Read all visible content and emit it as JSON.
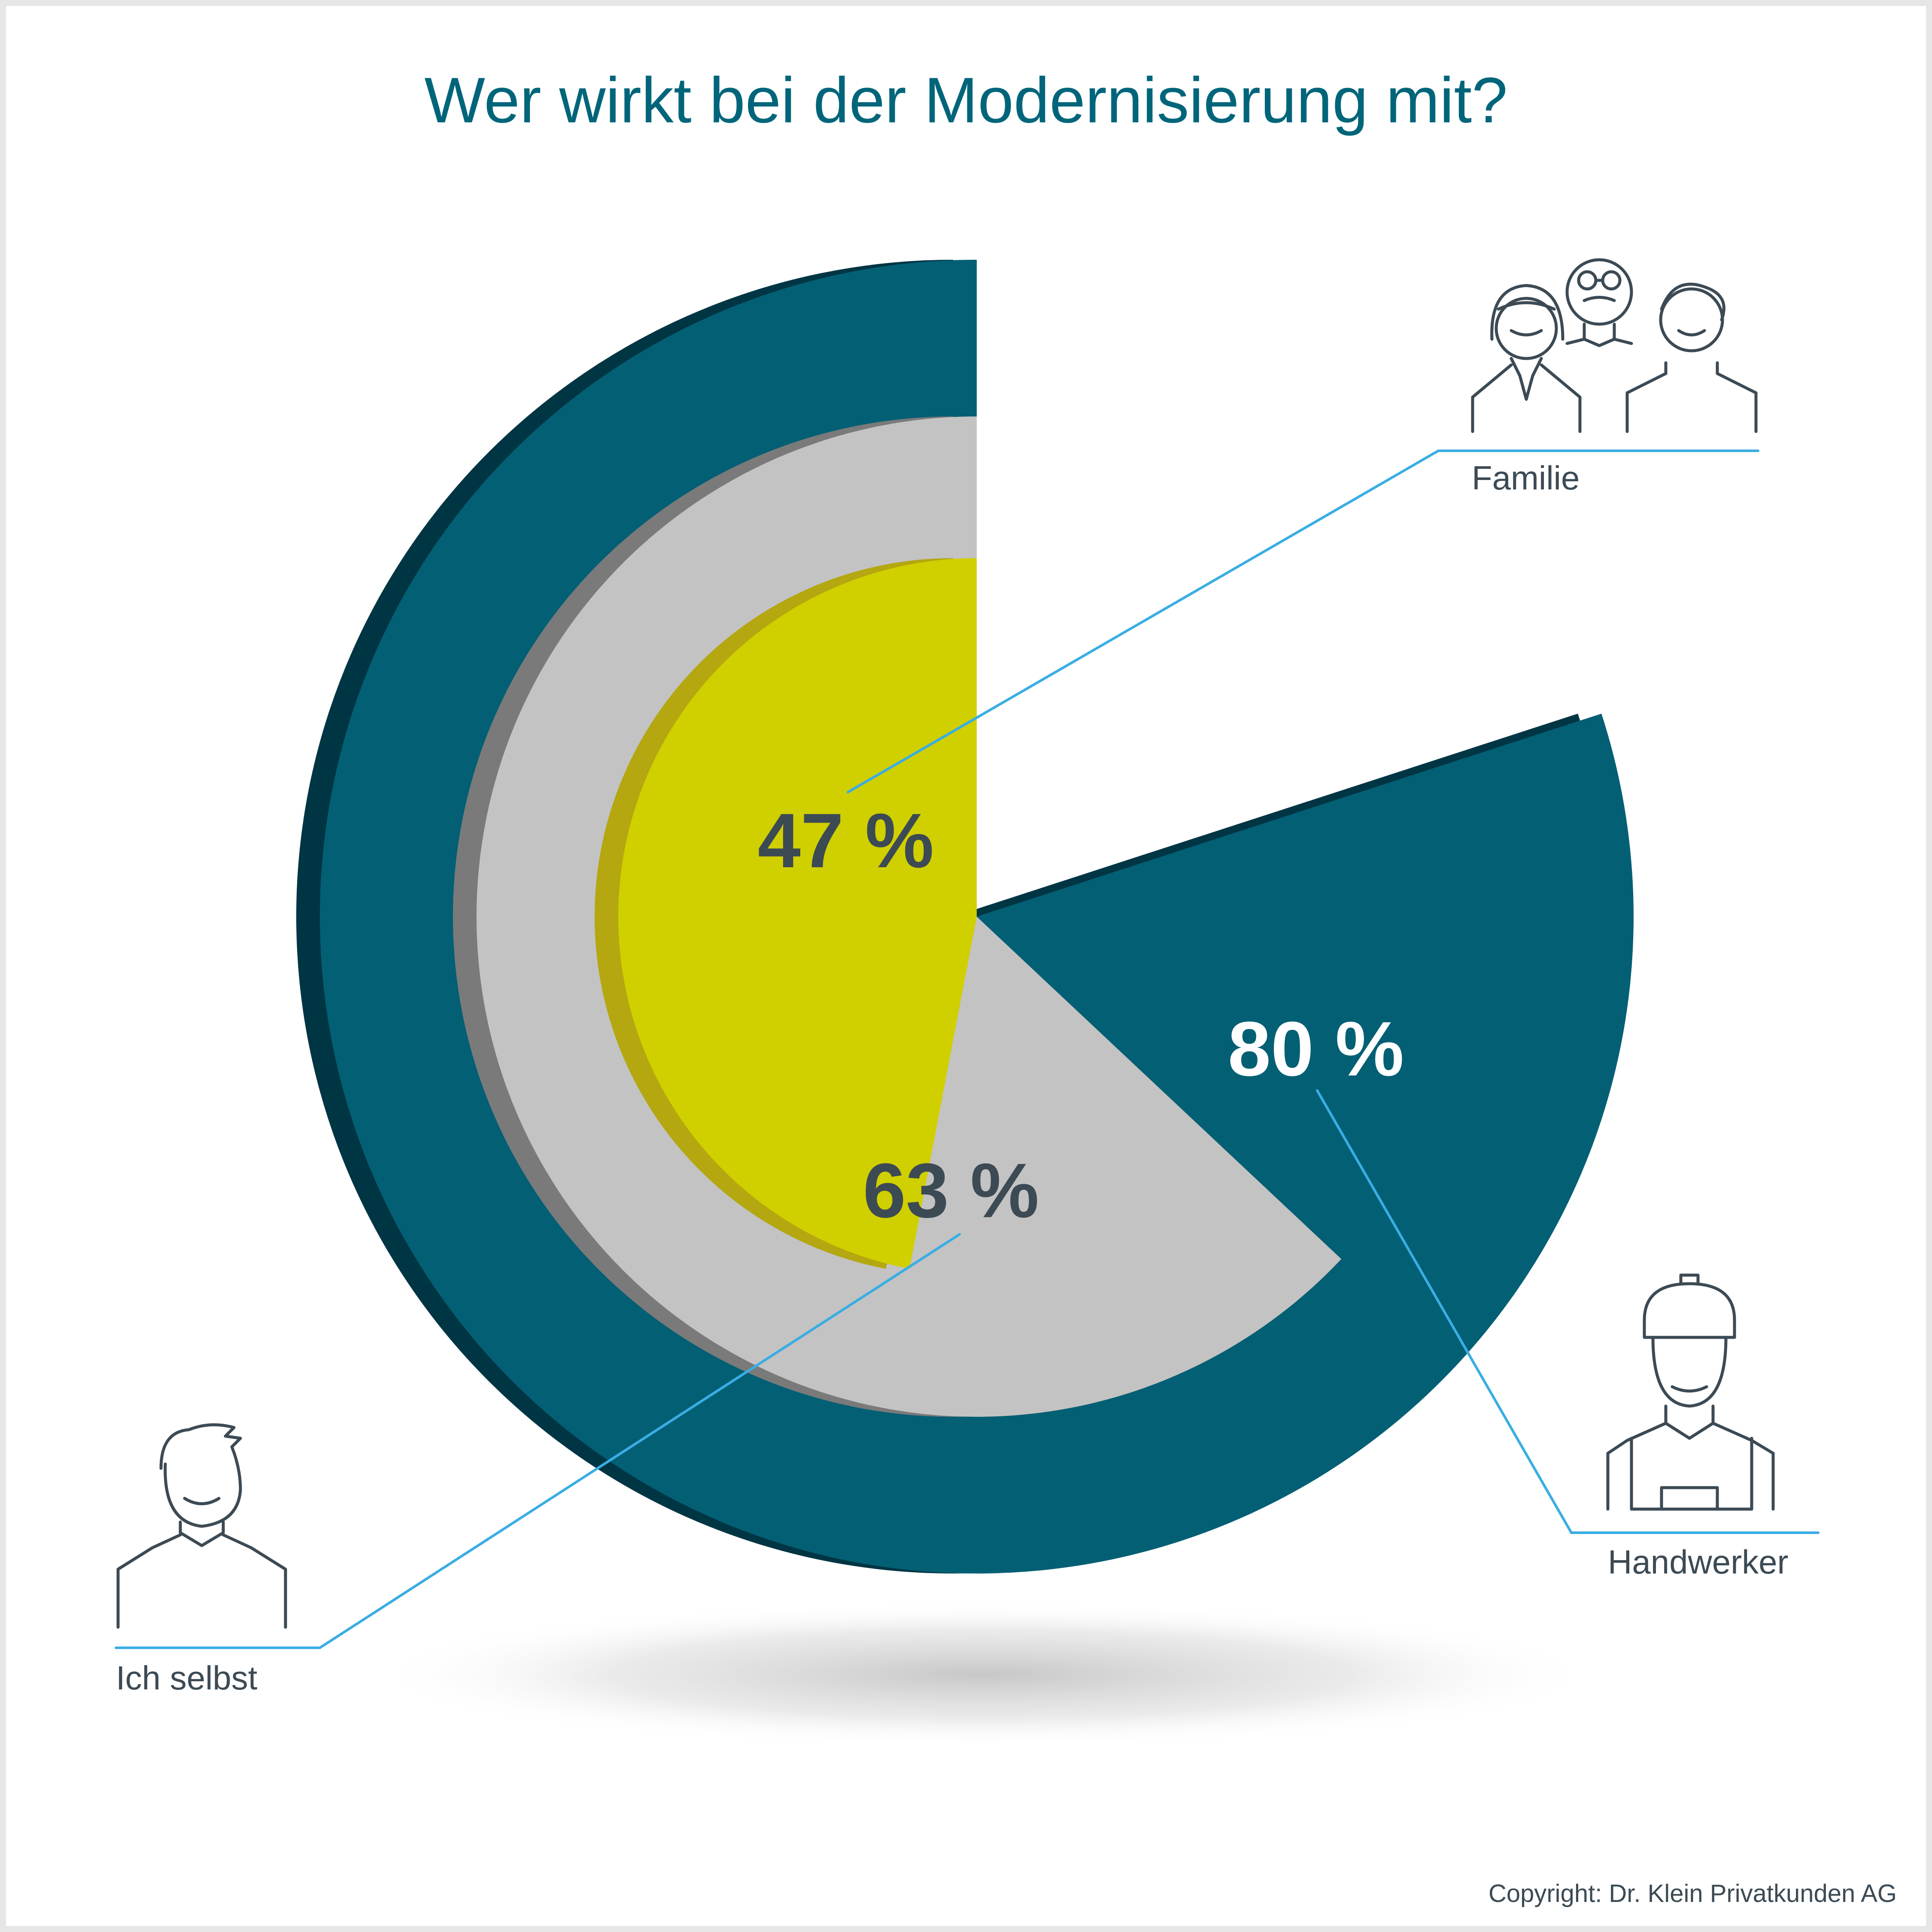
{
  "chart_data": {
    "type": "radial-bar",
    "title": "Wer wirkt bei der Modernisierung mit?",
    "unit": "%",
    "series": [
      {
        "name": "Handwerker",
        "value": 80,
        "label": "80 %",
        "color": "#035f74",
        "side_color": "#003544",
        "label_color": "#ffffff",
        "icon": "craftsman-icon"
      },
      {
        "name": "Ich selbst",
        "value": 63,
        "label": "63 %",
        "color": "#c3c3c3",
        "side_color": "#7a7a7a",
        "label_color": "#3c4a54",
        "icon": "person-icon"
      },
      {
        "name": "Familie",
        "value": 47,
        "label": "47 %",
        "color": "#d0cf00",
        "side_color": "#b4a70f",
        "label_color": "#3c4a54",
        "icon": "family-icon"
      }
    ],
    "grid": false,
    "legend": "callouts"
  },
  "copyright": "Copyright: Dr. Klein Privatkunden AG",
  "colors": {
    "title": "#00657a",
    "leader_line": "#3aade3",
    "icon_stroke": "#3c4a54",
    "caption": "#3c4a54"
  }
}
